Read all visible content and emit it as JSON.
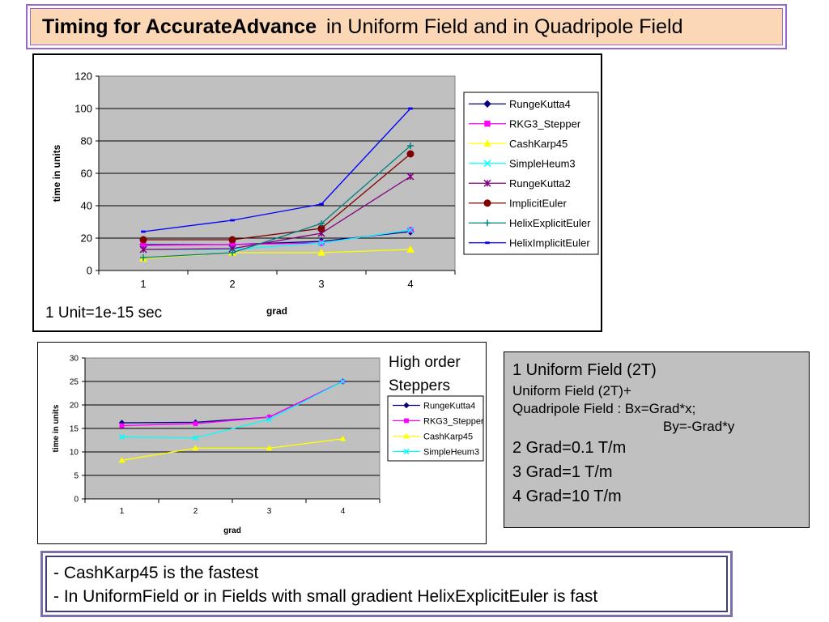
{
  "slide": {
    "title_bold": "Timing for AccurateAdvance",
    "title_rest": "in Uniform Field and  in Quadripole Field"
  },
  "chart_data": [
    {
      "type": "line",
      "x": [
        1,
        2,
        3,
        4
      ],
      "xlabel": "grad",
      "ylabel": "time in units",
      "ylim": [
        0,
        120
      ],
      "yticks": [
        0,
        20,
        40,
        60,
        80,
        100,
        120
      ],
      "grid": true,
      "legend": "right",
      "note": "1 Unit=1e-15 sec",
      "series": [
        {
          "name": "RungeKutta4",
          "color": "#000080",
          "marker": "diamond",
          "values": [
            16,
            16,
            18,
            24
          ]
        },
        {
          "name": "RKG3_Stepper",
          "color": "#ff00ff",
          "marker": "square",
          "values": [
            15.5,
            16,
            17,
            25
          ]
        },
        {
          "name": "CashKarp45",
          "color": "#ffff00",
          "marker": "triangle",
          "values": [
            7.5,
            11,
            11,
            13
          ]
        },
        {
          "name": "SimpleHeum3",
          "color": "#00ffff",
          "marker": "x",
          "values": [
            13,
            13,
            17,
            25
          ]
        },
        {
          "name": "RungeKutta2",
          "color": "#800080",
          "marker": "star",
          "values": [
            13,
            13.5,
            23,
            58
          ]
        },
        {
          "name": "ImplicitEuler",
          "color": "#800000",
          "marker": "circle",
          "values": [
            19,
            19,
            26,
            72
          ]
        },
        {
          "name": "HelixExplicitEuler",
          "color": "#008080",
          "marker": "plus",
          "values": [
            8,
            11,
            29,
            77
          ]
        },
        {
          "name": "HelixImplicitEuler",
          "color": "#0000ff",
          "marker": "dash",
          "values": [
            24,
            31,
            41,
            100
          ]
        }
      ]
    },
    {
      "type": "line",
      "x": [
        1,
        2,
        3,
        4
      ],
      "xlabel": "grad",
      "ylabel": "time in units",
      "ylim": [
        0,
        30
      ],
      "yticks": [
        0,
        5,
        10,
        15,
        20,
        25,
        30
      ],
      "grid": true,
      "legend": "right",
      "annotation": [
        "High order",
        "Steppers"
      ],
      "series": [
        {
          "name": "RungeKutta4",
          "color": "#000080",
          "marker": "diamond",
          "values": [
            16.2,
            16.3,
            17.4,
            25
          ]
        },
        {
          "name": "RKG3_Stepper",
          "color": "#ff00ff",
          "marker": "square",
          "values": [
            15.6,
            16,
            17.4,
            25
          ]
        },
        {
          "name": "CashKarp45",
          "color": "#ffff00",
          "marker": "triangle",
          "values": [
            8.2,
            10.8,
            10.8,
            12.8
          ]
        },
        {
          "name": "SimpleHeum3",
          "color": "#00ffff",
          "marker": "x",
          "values": [
            13.2,
            13,
            16.9,
            25
          ]
        }
      ]
    }
  ],
  "info": {
    "line1": "1    Uniform Field (2T)",
    "line2": "Uniform Field (2T)+",
    "line3": "Quadripole Field : Bx=Grad*x;",
    "line4": "By=-Grad*y",
    "line5": "2   Grad=0.1 T/m",
    "line6": "3   Grad=1    T/m",
    "line7": "4   Grad=10   T/m"
  },
  "conclusions": {
    "line1": "- CashKarp45 is the fastest",
    "line2": "- In UniformField or in Fields with small gradient  HelixExplicitEuler is fast"
  }
}
